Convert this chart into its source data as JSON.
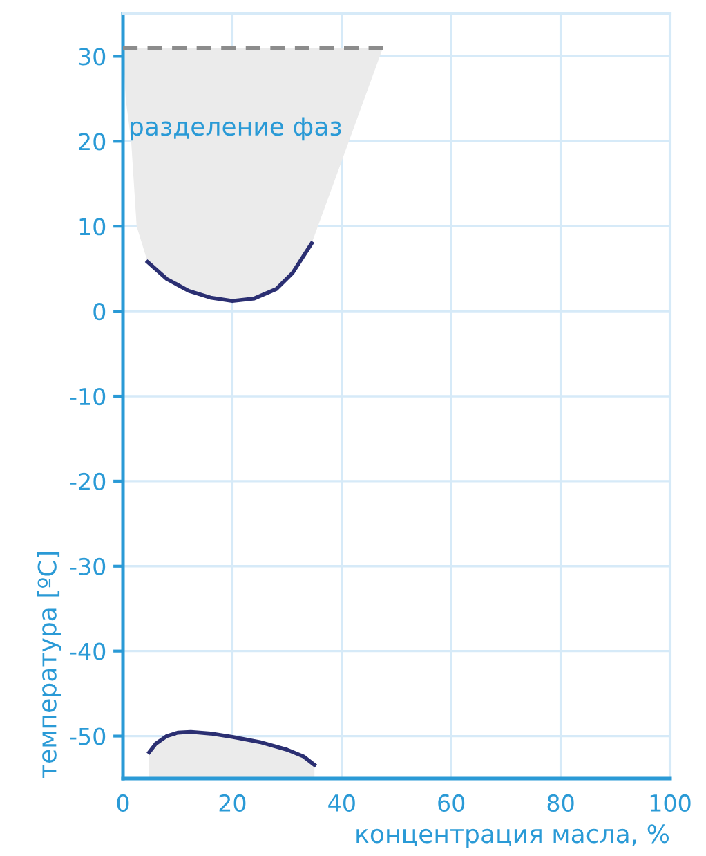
{
  "chart_data": {
    "type": "line",
    "xlabel": "концентрация масла, %",
    "ylabel": "температура [ºC]",
    "xlim": [
      0,
      100
    ],
    "xticks": [
      0,
      20,
      40,
      60,
      80,
      100
    ],
    "ylim": [
      -55,
      35
    ],
    "yticks": [
      -50,
      -40,
      -30,
      -20,
      -10,
      0,
      10,
      20,
      30
    ],
    "grid": true,
    "annotations": [
      {
        "text": "разделение фаз",
        "x": 1,
        "y": 21.5
      }
    ],
    "series": [
      {
        "color": "#8c8c8c",
        "line_style": "dashed",
        "x": [
          0,
          0.5,
          1.5,
          2.5,
          4.5,
          8,
          12,
          16,
          20,
          24,
          28,
          31,
          34.5,
          40,
          47.5
        ],
        "values": [
          31,
          31,
          31,
          31,
          31,
          31,
          31,
          31,
          31,
          31,
          31,
          31,
          31,
          31,
          31
        ],
        "lower": [
          31,
          25,
          20,
          10,
          5.8,
          3.8,
          2.4,
          1.6,
          1.2,
          1.5,
          2.6,
          4.5,
          8,
          17.7,
          31
        ],
        "upper": [
          31,
          31,
          31,
          31,
          31,
          31,
          31,
          31,
          31,
          31,
          31,
          31,
          31,
          31,
          31
        ]
      },
      {
        "color": "#2b2f72",
        "x": [
          4.5,
          8,
          12,
          16,
          20,
          24,
          28,
          31,
          34.5
        ],
        "values": [
          5.8,
          3.8,
          2.4,
          1.6,
          1.2,
          1.5,
          2.6,
          4.5,
          8
        ]
      },
      {
        "color": "#2b2f72",
        "x": [
          4.8,
          6,
          8,
          10,
          12.4,
          16,
          20,
          25,
          30,
          33,
          35
        ],
        "values": [
          -51.9,
          -50.9,
          -50,
          -49.6,
          -49.5,
          -49.7,
          -50.1,
          -50.7,
          -51.6,
          -52.4,
          -53.4
        ],
        "lower": [
          -55,
          -55,
          -55,
          -55,
          -55,
          -55,
          -55,
          -55,
          -55,
          -55,
          -55
        ],
        "upper": [
          -51.9,
          -50.9,
          -50,
          -49.6,
          -49.5,
          -49.7,
          -50.1,
          -50.7,
          -51.6,
          -52.4,
          -53.4
        ]
      }
    ]
  }
}
